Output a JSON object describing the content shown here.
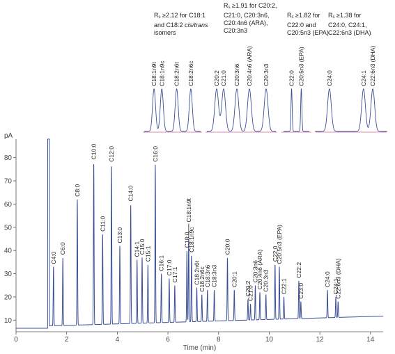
{
  "chart_data": {
    "type": "line",
    "title": "",
    "xlabel": "Time (min)",
    "ylabel": "pA",
    "xlim": [
      0,
      14.5
    ],
    "ylim": [
      5,
      88
    ],
    "xticks": [
      0,
      2,
      4,
      6,
      8,
      10,
      12,
      14
    ],
    "yticks": [
      10,
      20,
      30,
      40,
      50,
      60,
      70,
      80
    ],
    "grid": false,
    "line_color": "#3a4f96",
    "peaks": [
      {
        "label": "C4:0",
        "rt": 1.48,
        "height": 33
      },
      {
        "label": "C6:0",
        "rt": 1.85,
        "height": 37
      },
      {
        "label": "C8:0",
        "rt": 2.42,
        "height": 62
      },
      {
        "label": "C10:0",
        "rt": 3.07,
        "height": 78
      },
      {
        "label": "C11:0",
        "rt": 3.42,
        "height": 47
      },
      {
        "label": "C12:0",
        "rt": 3.77,
        "height": 77
      },
      {
        "label": "C13:0",
        "rt": 4.1,
        "height": 42
      },
      {
        "label": "C14:0",
        "rt": 4.53,
        "height": 60
      },
      {
        "label": "C14:1",
        "rt": 4.78,
        "height": 36
      },
      {
        "label": "C15:0",
        "rt": 4.98,
        "height": 37
      },
      {
        "label": "C15:1",
        "rt": 5.21,
        "height": 34
      },
      {
        "label": "C16:0",
        "rt": 5.5,
        "height": 77
      },
      {
        "label": "C16:1",
        "rt": 5.74,
        "height": 30
      },
      {
        "label": "C17:0",
        "rt": 6.05,
        "height": 28
      },
      {
        "label": "C17:1",
        "rt": 6.27,
        "height": 25
      },
      {
        "label": "C18:0",
        "rt": 6.75,
        "height": 40
      },
      {
        "label": "C18:1n9t",
        "rt": 6.82,
        "height": 45
      },
      {
        "label": "C18:1n9c",
        "rt": 6.93,
        "height": 38
      },
      {
        "label": "C18:2n6t",
        "rt": 7.14,
        "height": 24
      },
      {
        "label": "C18:2n6c",
        "rt": 7.34,
        "height": 21
      },
      {
        "label": "C18:3n6",
        "rt": 7.56,
        "height": 23
      },
      {
        "label": "C18:3n3",
        "rt": 7.83,
        "height": 23
      },
      {
        "label": "C20:0",
        "rt": 8.35,
        "height": 37
      },
      {
        "label": "C20:1",
        "rt": 8.62,
        "height": 23
      },
      {
        "label": "C20:2",
        "rt": 9.16,
        "height": 19
      },
      {
        "label": "C21:0",
        "rt": 9.26,
        "height": 17
      },
      {
        "label": "C20:3n6",
        "rt": 9.45,
        "height": 25
      },
      {
        "label": "C20:4n6 (ARA)",
        "rt": 9.63,
        "height": 22
      },
      {
        "label": "C20:3n3",
        "rt": 9.87,
        "height": 21
      },
      {
        "label": "C22:0",
        "rt": 10.23,
        "height": 34
      },
      {
        "label": "C20:5n3 (EPA)",
        "rt": 10.4,
        "height": 33
      },
      {
        "label": "C22:1",
        "rt": 10.58,
        "height": 20
      },
      {
        "label": "C22:2",
        "rt": 11.17,
        "height": 27
      },
      {
        "label": "C23:0",
        "rt": 11.25,
        "height": 18
      },
      {
        "label": "C24:0",
        "rt": 12.3,
        "height": 23
      },
      {
        "label": "C24:1",
        "rt": 12.63,
        "height": 20
      },
      {
        "label": "C22:6n3 (DHA)",
        "rt": 12.72,
        "height": 18
      }
    ],
    "insets": [
      {
        "annotation_prefix": "R",
        "annotation_sub": "s",
        "annotation_lines": [
          " ≥2.12  for C18:1",
          "and C18:2 cis/trans",
          "isomers"
        ],
        "italic_words": [
          "cis/trans"
        ],
        "peaks": [
          "C18:1n9t",
          "C18:1n9c",
          "C18:2n6t",
          "C18:2n6c"
        ]
      },
      {
        "annotation_prefix": "R",
        "annotation_sub": "s",
        "annotation_lines": [
          " ≥1.91 for C20:2,",
          "C21:0, C20:3n6,",
          "C20:4n6 (ARA),",
          "C20:3n3"
        ],
        "italic_words": [],
        "peaks": [
          "C20:2",
          "C21:0",
          "C20:3n6",
          "C20:4n6 (ARA)",
          "C20:3n3"
        ]
      },
      {
        "annotation_prefix": "R",
        "annotation_sub": "s",
        "annotation_lines": [
          " ≥1.82 for",
          "C22:0 and",
          "C20:5n3 (EPA)"
        ],
        "italic_words": [],
        "peaks": [
          "C22:0",
          "C20:5n3 (EPA)"
        ]
      },
      {
        "annotation_prefix": "R",
        "annotation_sub": "s",
        "annotation_lines": [
          " ≥1.38 for",
          "C24:0, C24:1,",
          "C22:6n3 (DHA)"
        ],
        "italic_words": [],
        "peaks": [
          "C24:0",
          "C24:1",
          "C22:6n3 (DHA)"
        ]
      }
    ]
  }
}
